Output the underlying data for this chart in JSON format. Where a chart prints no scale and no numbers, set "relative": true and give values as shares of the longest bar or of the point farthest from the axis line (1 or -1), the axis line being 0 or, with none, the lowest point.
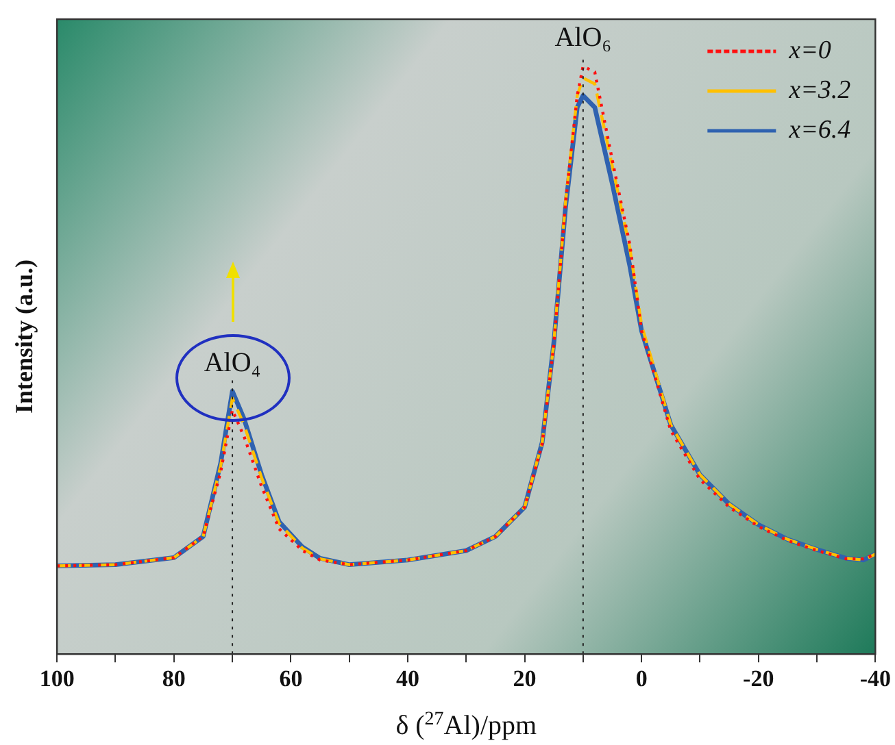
{
  "chart_data": {
    "type": "line",
    "relative": true,
    "xlabel": "δ ($^{27}$Al)/ppm",
    "ylabel": "Intensity (a.u.)",
    "xlim": [
      100,
      -40
    ],
    "xticks": [
      100,
      {
        "value": 90,
        "label": null
      },
      80,
      {
        "value": 70,
        "label": null
      },
      60,
      {
        "value": 50,
        "label": null
      },
      40,
      {
        "value": 30,
        "label": null
      },
      20,
      {
        "value": 10,
        "label": null
      },
      0,
      {
        "value": -10,
        "label": null
      },
      {
        "value": -20,
        "label": "-20"
      },
      {
        "value": -30,
        "label": null
      },
      {
        "value": -40,
        "label": "-40"
      }
    ],
    "x": [
      100,
      90,
      80,
      75,
      72,
      70,
      68,
      65,
      62,
      58,
      55,
      50,
      40,
      30,
      25,
      20,
      17,
      15,
      13,
      11,
      10,
      8,
      5,
      2,
      0,
      -5,
      -10,
      -15,
      -20,
      -25,
      -30,
      -35,
      -38,
      -40
    ],
    "series": [
      {
        "name": "x=0",
        "color": "#ff1010",
        "line_style": "dotted",
        "values": [
          0.15,
          0.152,
          0.164,
          0.2,
          0.31,
          0.415,
          0.37,
          0.285,
          0.213,
          0.176,
          0.16,
          0.152,
          0.16,
          0.176,
          0.2,
          0.25,
          0.357,
          0.527,
          0.768,
          0.95,
          1.0,
          0.99,
          0.84,
          0.696,
          0.55,
          0.38,
          0.297,
          0.25,
          0.217,
          0.193,
          0.176,
          0.162,
          0.162,
          0.17
        ]
      },
      {
        "name": "x=3.2",
        "color": "#ffc000",
        "line_style": "dashed",
        "values": [
          0.15,
          0.152,
          0.164,
          0.2,
          0.32,
          0.435,
          0.39,
          0.3,
          0.222,
          0.18,
          0.162,
          0.152,
          0.16,
          0.176,
          0.2,
          0.25,
          0.36,
          0.53,
          0.77,
          0.95,
          0.98,
          0.97,
          0.83,
          0.69,
          0.56,
          0.39,
          0.305,
          0.255,
          0.22,
          0.195,
          0.178,
          0.163,
          0.16,
          0.17
        ]
      },
      {
        "name": "x=6.4",
        "color": "#2f62b0",
        "line_style": "solid",
        "values": [
          0.15,
          0.152,
          0.164,
          0.2,
          0.325,
          0.447,
          0.4,
          0.305,
          0.225,
          0.182,
          0.163,
          0.152,
          0.16,
          0.176,
          0.2,
          0.25,
          0.36,
          0.53,
          0.76,
          0.93,
          0.95,
          0.93,
          0.8,
          0.66,
          0.55,
          0.39,
          0.305,
          0.255,
          0.22,
          0.195,
          0.178,
          0.163,
          0.16,
          0.17
        ]
      }
    ],
    "ref_lines": [
      {
        "axis": "x",
        "value": 70,
        "label": "AlO₄",
        "line_style": "dotted",
        "color": "#222222"
      },
      {
        "axis": "x",
        "value": 10,
        "label": "AlO₆",
        "line_style": "dotted",
        "color": "#222222"
      }
    ],
    "legend": "top right",
    "grid": false,
    "marker": "none"
  }
}
